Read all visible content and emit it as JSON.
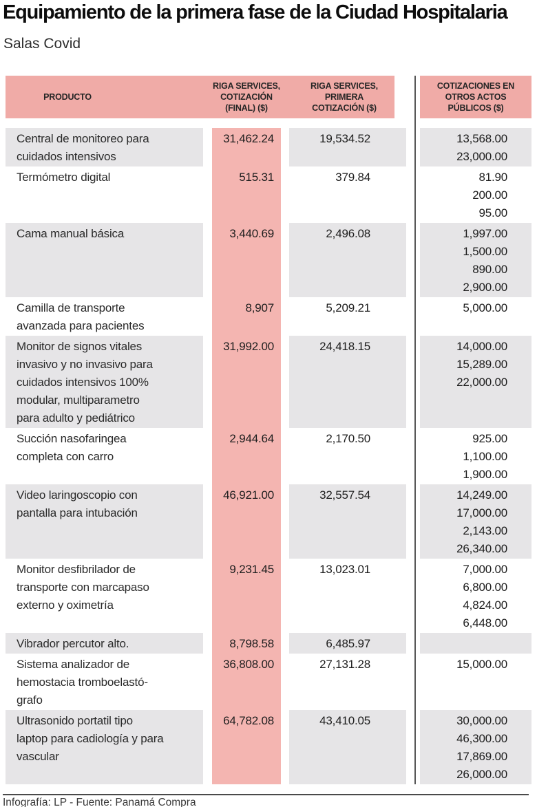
{
  "title": "Equipamiento de la primera fase de la Ciudad Hospitalaria",
  "subtitle": "Salas Covid",
  "footer": "Infografía: LP - Fuente: Panamá Compra",
  "colors": {
    "header_pink": "#f0aba7",
    "highlight_column_pink": "#f4b5b1",
    "row_gray": "#e6e5e7",
    "divider_gray": "#565656"
  },
  "table": {
    "columns": {
      "product": "PRODUCTO",
      "riga_final": "RIGA SERVICES,\nCOTIZACIÓN\n(FINAL) ($)",
      "riga_first": "RIGA SERVICES,\nPRIMERA\nCOTIZACIÓN ($)",
      "others": "COTIZACIONES EN\nOTROS ACTOS\nPÚBLICOS ($)"
    },
    "rows": [
      {
        "product": "Central de monitoreo para\ncuidados intensivos",
        "riga_final": "31,462.24",
        "riga_first": "19,534.52",
        "others": [
          "13,568.00",
          "23,000.00"
        ]
      },
      {
        "product": "Termómetro digital",
        "riga_final": "515.31",
        "riga_first": "379.84",
        "others": [
          "81.90",
          "200.00",
          "95.00"
        ]
      },
      {
        "product": "Cama manual básica",
        "riga_final": "3,440.69",
        "riga_first": "2,496.08",
        "others": [
          "1,997.00",
          "1,500.00",
          "890.00",
          "2,900.00"
        ]
      },
      {
        "product": "Camilla de transporte\navanzada para pacientes",
        "riga_final": "8,907",
        "riga_first": "5,209.21",
        "others": [
          "5,000.00"
        ]
      },
      {
        "product": "Monitor de signos vitales\ninvasivo y no invasivo para\ncuidados intensivos 100%\nmodular, multiparametro\npara adulto y pediátrico",
        "riga_final": "31,992.00",
        "riga_first": "24,418.15",
        "others": [
          "14,000.00",
          "15,289.00",
          "22,000.00"
        ]
      },
      {
        "product": "Succión nasofaringea\ncompleta con carro",
        "riga_final": "2,944.64",
        "riga_first": "2,170.50",
        "others": [
          "925.00",
          "1,100.00",
          "1,900.00"
        ]
      },
      {
        "product": "Video laringoscopio con\npantalla para intubación",
        "riga_final": "46,921.00",
        "riga_first": "32,557.54",
        "others": [
          "14,249.00",
          "17,000.00",
          "2,143.00",
          "26,340.00"
        ]
      },
      {
        "product": "Monitor desfibrilador de\ntransporte con marcapaso\nexterno y oximetría",
        "riga_final": "9,231.45",
        "riga_first": "13,023.01",
        "others": [
          "7,000.00",
          "6,800.00",
          "4,824.00",
          "6,448.00"
        ]
      },
      {
        "product": "Vibrador percutor alto.",
        "riga_final": "8,798.58",
        "riga_first": "6,485.97",
        "others": []
      },
      {
        "product": "Sistema analizador de\nhemostacia tromboelastó-\ngrafo",
        "riga_final": "36,808.00",
        "riga_first": "27,131.28",
        "others": [
          "15,000.00"
        ]
      },
      {
        "product": "Ultrasonido portatil tipo\nlaptop  para cadiología y para\nvascular",
        "riga_final": "64,782.08",
        "riga_first": "43,410.05",
        "others": [
          "30,000.00",
          "46,300.00",
          "17,869.00",
          "26,000.00"
        ]
      }
    ]
  },
  "chart_data": {
    "type": "table",
    "title": "Equipamiento de la primera fase de la Ciudad Hospitalaria",
    "subtitle": "Salas Covid",
    "columns": [
      "PRODUCTO",
      "RIGA SERVICES, COTIZACIÓN (FINAL) ($)",
      "RIGA SERVICES, PRIMERA COTIZACIÓN ($)",
      "COTIZACIONES EN OTROS ACTOS PÚBLICOS ($)"
    ],
    "rows": [
      {
        "producto": "Central de monitoreo para cuidados intensivos",
        "riga_final": 31462.24,
        "riga_primera": 19534.52,
        "otros": [
          13568.0,
          23000.0
        ]
      },
      {
        "producto": "Termómetro digital",
        "riga_final": 515.31,
        "riga_primera": 379.84,
        "otros": [
          81.9,
          200.0,
          95.0
        ]
      },
      {
        "producto": "Cama manual básica",
        "riga_final": 3440.69,
        "riga_primera": 2496.08,
        "otros": [
          1997.0,
          1500.0,
          890.0,
          2900.0
        ]
      },
      {
        "producto": "Camilla de transporte avanzada para pacientes",
        "riga_final": 8907,
        "riga_primera": 5209.21,
        "otros": [
          5000.0
        ]
      },
      {
        "producto": "Monitor de signos vitales invasivo y no invasivo para cuidados intensivos 100% modular, multiparametro para adulto y pediátrico",
        "riga_final": 31992.0,
        "riga_primera": 24418.15,
        "otros": [
          14000.0,
          15289.0,
          22000.0
        ]
      },
      {
        "producto": "Succión nasofaringea completa con carro",
        "riga_final": 2944.64,
        "riga_primera": 2170.5,
        "otros": [
          925.0,
          1100.0,
          1900.0
        ]
      },
      {
        "producto": "Video laringoscopio con pantalla para intubación",
        "riga_final": 46921.0,
        "riga_primera": 32557.54,
        "otros": [
          14249.0,
          17000.0,
          2143.0,
          26340.0
        ]
      },
      {
        "producto": "Monitor desfibrilador de transporte con marcapaso externo y oximetría",
        "riga_final": 9231.45,
        "riga_primera": 13023.01,
        "otros": [
          7000.0,
          6800.0,
          4824.0,
          6448.0
        ]
      },
      {
        "producto": "Vibrador percutor alto.",
        "riga_final": 8798.58,
        "riga_primera": 6485.97,
        "otros": []
      },
      {
        "producto": "Sistema analizador de hemostacia tromboelastógrafo",
        "riga_final": 36808.0,
        "riga_primera": 27131.28,
        "otros": [
          15000.0
        ]
      },
      {
        "producto": "Ultrasonido portatil tipo laptop para cadiología y para vascular",
        "riga_final": 64782.08,
        "riga_primera": 43410.05,
        "otros": [
          30000.0,
          46300.0,
          17869.0,
          26000.0
        ]
      }
    ]
  }
}
